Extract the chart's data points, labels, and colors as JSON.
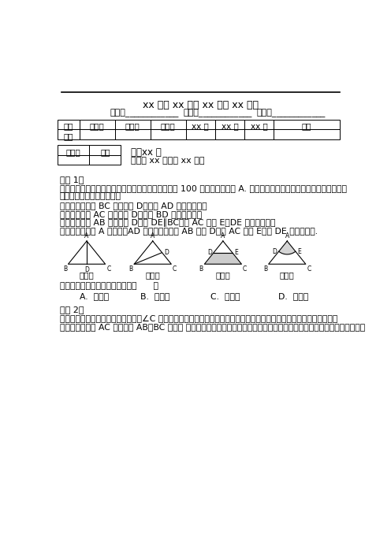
{
  "title_line": "xx 学校 xx 学年 xx 学期 xx 试卷",
  "name_label": "姓名：",
  "grade_label": "年级：",
  "id_label": "学号：",
  "table1_headers": [
    "题型",
    "选择题",
    "填空题",
    "简答题",
    "xx 题",
    "xx 题",
    "xx 题",
    "总分"
  ],
  "table1_row2": [
    "得分",
    "",
    "",
    "",
    "",
    "",
    "",
    ""
  ],
  "table2_col1": "评卷人",
  "table2_col2": "得分",
  "section_title": "一、xx 题",
  "section_subtitle": "（每空 xx 分，共 xx 分）",
  "problem1_title": "试题 1：",
  "problem1_text1": "某小区现有一块等腰直角三角形形状的绿地，腰长为 100 米，直角顶点为 A. 小区物业管委会准备把它分割成面积相等的",
  "problem1_text2": "两块，有如下的分割方法：",
  "problem1_method1": "方法一：在底边 BC 上找一点 D，连接 AD 作为分割线；",
  "problem1_method2": "方法二：在腰 AC 上找一点 D，连接 BD 作为分割线；",
  "problem1_method3": "方法三：在腰 AB 上找一点 D，作 DE∥BC，交 AC 于点 E，DE 作为分割线；",
  "problem1_method4": "方法四：以顶点 A 为圆心，AD 为半径作弧，交 AB 于点 D，交 AC 于点 E，弧 DE 作为分割线.",
  "problem1_question": "这些分割方法中分割线最短的是（      ）",
  "problem1_optA": "A.  方法一",
  "problem1_optB": "B.  方法二",
  "problem1_optC": "C.  方法三",
  "problem1_optD": "D.  方法四",
  "problem2_title": "试题 2：",
  "problem2_text1": "如图，要在一块形状为直角三角形（∠C 为直角）的鐵皮上裁出一个半圆形的鐵皮，需先在这块鐵皮上画出一个半圆，使",
  "problem2_text2": "它的圆心在线段 AC 上，且与 AB、BC 都相切 请你用直尺和圆规画出来（要求用尺规作图，保留作图痕迹，不要求写作法）。",
  "method_labels": [
    "方法一",
    "方法二",
    "方法三",
    "方法四"
  ],
  "bg_color": "#ffffff"
}
